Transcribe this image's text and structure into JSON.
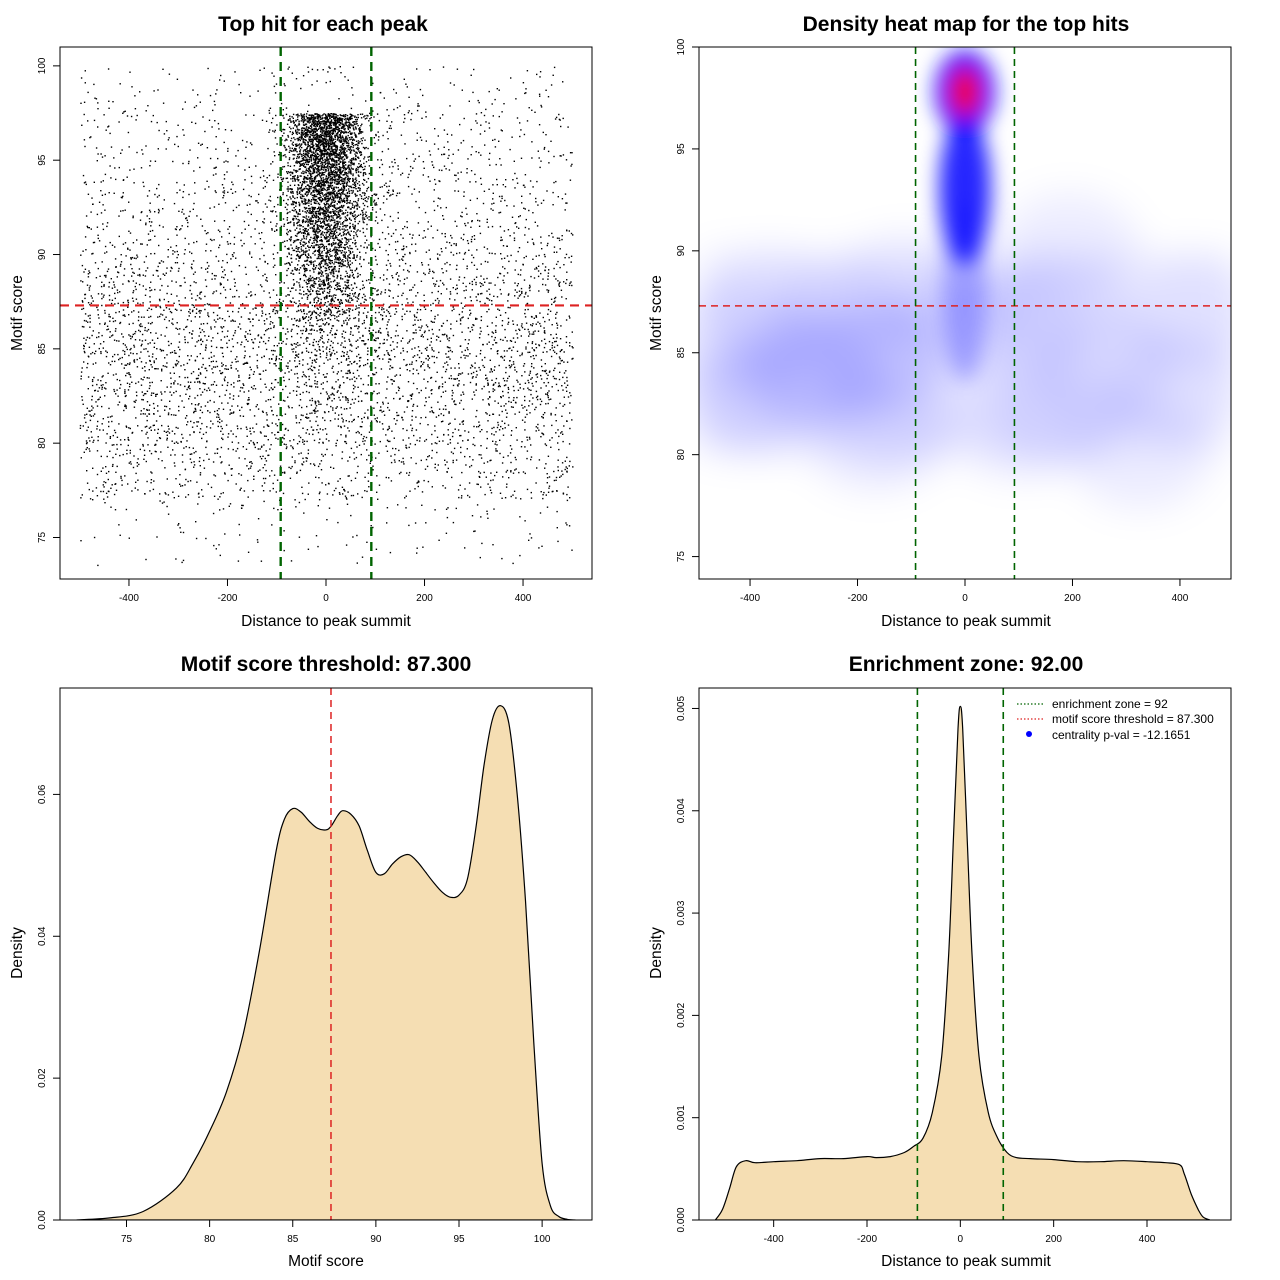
{
  "colors": {
    "points": "#000000",
    "threshold": "#dd2222",
    "zone": "#006400",
    "fill": "#f5deb3",
    "heat_low": "#ffffff",
    "heat_mid": "#0000ff",
    "heat_high": "#ff0000",
    "legend_dot": "#0000ff"
  },
  "chart_data": [
    {
      "type": "scatter",
      "title": "Top hit for each peak",
      "xlabel": "Distance to peak summit",
      "ylabel": "Motif score",
      "xlim": [
        -540,
        540
      ],
      "ylim": [
        72.8,
        101.0
      ],
      "xticks": [
        "-400",
        "-200",
        "0",
        "200",
        "400"
      ],
      "yticks": [
        "75",
        "80",
        "85",
        "90",
        "95",
        "100"
      ],
      "threshold_y": 87.3,
      "zone_x": [
        -92,
        92
      ],
      "point_distribution": {
        "x_range": [
          -500,
          500
        ],
        "y_range": [
          73.5,
          100
        ],
        "central_peak_x": 0,
        "central_peak_y": 97.5,
        "background_mode_y": 84.5
      }
    },
    {
      "type": "heatmap",
      "title": "Density heat map for the top hits",
      "xlabel": "Distance to peak summit",
      "ylabel": "Motif score",
      "xlim": [
        -495,
        495
      ],
      "ylim": [
        73.9,
        100.0
      ],
      "xticks": [
        "-400",
        "-200",
        "0",
        "200",
        "400"
      ],
      "yticks": [
        "75",
        "80",
        "85",
        "90",
        "95",
        "100"
      ],
      "threshold_y": 87.3,
      "zone_x": [
        -92,
        92
      ],
      "hotspot": {
        "x": 0,
        "y": 97.8
      },
      "background_mode_y": 84.5
    },
    {
      "type": "area",
      "title": "Motif score threshold: 87.300",
      "xlabel": "Motif score",
      "ylabel": "Density",
      "xlim": [
        71.0,
        103.0
      ],
      "ylim": [
        0,
        0.075
      ],
      "xticks": [
        "75",
        "80",
        "85",
        "90",
        "95",
        "100"
      ],
      "yticks": [
        "0.00",
        "0.02",
        "0.04",
        "0.06"
      ],
      "threshold_x": 87.3,
      "x": [
        72,
        74,
        76,
        78,
        79,
        80,
        81,
        82,
        83,
        84,
        84.5,
        85,
        85.5,
        86,
        86.5,
        87,
        87.3,
        87.7,
        88,
        88.5,
        89,
        89.5,
        90,
        90.5,
        91,
        91.5,
        92,
        92.5,
        93,
        93.5,
        94,
        94.5,
        95,
        95.5,
        96,
        96.5,
        97,
        97.5,
        98,
        98.5,
        99,
        99.5,
        100,
        100.5,
        101,
        101.5,
        102
      ],
      "y": [
        0,
        0.0003,
        0.0012,
        0.0045,
        0.008,
        0.0125,
        0.018,
        0.026,
        0.038,
        0.052,
        0.0565,
        0.058,
        0.0575,
        0.0562,
        0.0552,
        0.055,
        0.0555,
        0.057,
        0.0577,
        0.0572,
        0.0555,
        0.052,
        0.049,
        0.0488,
        0.0502,
        0.0512,
        0.0515,
        0.0505,
        0.049,
        0.0475,
        0.0462,
        0.0455,
        0.0458,
        0.048,
        0.055,
        0.064,
        0.0705,
        0.0725,
        0.07,
        0.06,
        0.045,
        0.025,
        0.008,
        0.002,
        0.0005,
        0.0001,
        0
      ]
    },
    {
      "type": "area",
      "title": "Enrichment zone: 92.00",
      "xlabel": "Distance to peak summit",
      "ylabel": "Density",
      "xlim": [
        -560,
        580
      ],
      "ylim": [
        0,
        0.0052
      ],
      "xticks": [
        "-400",
        "-200",
        "0",
        "200",
        "400"
      ],
      "yticks": [
        "0.000",
        "0.001",
        "0.002",
        "0.003",
        "0.004",
        "0.005"
      ],
      "zone_x": [
        -92,
        92
      ],
      "x": [
        -525,
        -510,
        -495,
        -480,
        -460,
        -440,
        -400,
        -350,
        -300,
        -250,
        -200,
        -180,
        -150,
        -120,
        -100,
        -80,
        -60,
        -40,
        -25,
        -15,
        -5,
        0,
        5,
        15,
        25,
        40,
        60,
        80,
        100,
        120,
        150,
        200,
        250,
        300,
        350,
        400,
        440,
        470,
        480,
        495,
        510,
        520,
        535
      ],
      "y": [
        0,
        0.0001,
        0.0003,
        0.00052,
        0.00058,
        0.00056,
        0.00057,
        0.00058,
        0.0006,
        0.0006,
        0.00062,
        0.00061,
        0.00062,
        0.00066,
        0.00072,
        0.0008,
        0.00105,
        0.0016,
        0.0026,
        0.0037,
        0.0048,
        0.00502,
        0.0048,
        0.0037,
        0.0026,
        0.0016,
        0.00105,
        0.0008,
        0.00066,
        0.00061,
        0.0006,
        0.00059,
        0.00057,
        0.00057,
        0.00058,
        0.00057,
        0.00056,
        0.00054,
        0.00045,
        0.00025,
        0.0001,
        3e-05,
        0
      ],
      "legend": [
        {
          "label": "enrichment zone = 92",
          "style": "dotted-line",
          "color": "#006400"
        },
        {
          "label": "motif score threshold = 87.300",
          "style": "dotted-line",
          "color": "#dd2222"
        },
        {
          "label": "centrality p-val = -12.1651",
          "style": "dot",
          "color": "#0000ff"
        }
      ]
    }
  ]
}
